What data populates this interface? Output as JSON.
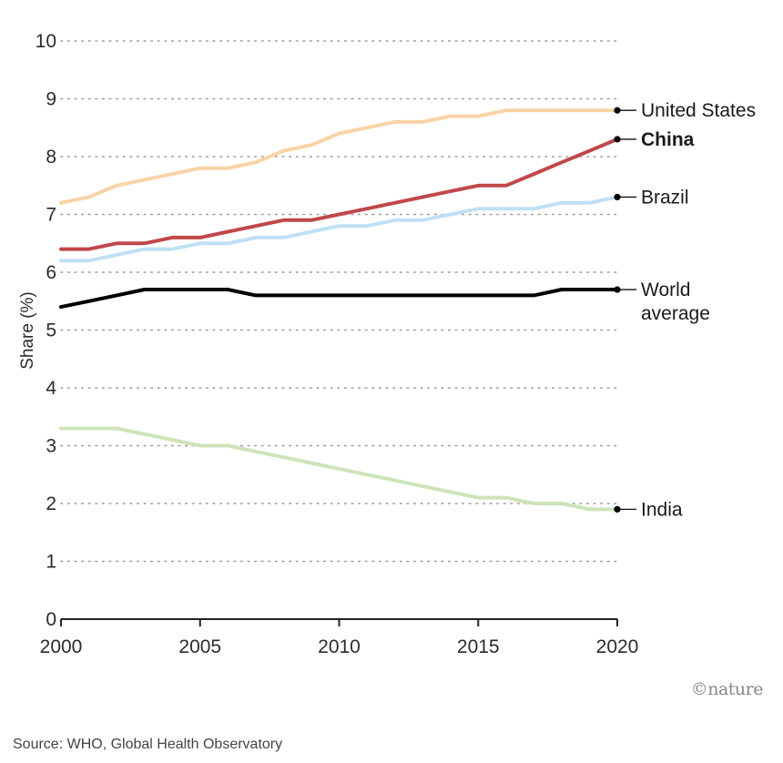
{
  "chart_data": {
    "type": "line",
    "title": "",
    "xlabel": "",
    "ylabel": "Share (%)",
    "xlim": [
      2000,
      2020
    ],
    "ylim": [
      0,
      10
    ],
    "x_ticks": [
      2000,
      2005,
      2010,
      2015,
      2020
    ],
    "y_ticks": [
      0,
      1,
      2,
      3,
      4,
      5,
      6,
      7,
      8,
      9,
      10
    ],
    "grid": true,
    "x": [
      2000,
      2001,
      2002,
      2003,
      2004,
      2005,
      2006,
      2007,
      2008,
      2009,
      2010,
      2011,
      2012,
      2013,
      2014,
      2015,
      2016,
      2017,
      2018,
      2019,
      2020
    ],
    "series": [
      {
        "name": "United States",
        "label_lines": [
          "United States"
        ],
        "bold": false,
        "color": "#f9d3a6",
        "values": [
          7.2,
          7.3,
          7.5,
          7.6,
          7.7,
          7.8,
          7.8,
          7.9,
          8.1,
          8.2,
          8.4,
          8.5,
          8.6,
          8.6,
          8.7,
          8.7,
          8.8,
          8.8,
          8.8,
          8.8,
          8.8
        ]
      },
      {
        "name": "China",
        "label_lines": [
          "China"
        ],
        "bold": true,
        "color": "#c0474a",
        "values": [
          6.4,
          6.4,
          6.5,
          6.5,
          6.6,
          6.6,
          6.7,
          6.8,
          6.9,
          6.9,
          7.0,
          7.1,
          7.2,
          7.3,
          7.4,
          7.5,
          7.5,
          7.7,
          7.9,
          8.1,
          8.3
        ]
      },
      {
        "name": "Brazil",
        "label_lines": [
          "Brazil"
        ],
        "bold": false,
        "color": "#bfe0f4",
        "values": [
          6.2,
          6.2,
          6.3,
          6.4,
          6.4,
          6.5,
          6.5,
          6.6,
          6.6,
          6.7,
          6.8,
          6.8,
          6.9,
          6.9,
          7.0,
          7.1,
          7.1,
          7.1,
          7.2,
          7.2,
          7.3
        ]
      },
      {
        "name": "World average",
        "label_lines": [
          "World",
          "average"
        ],
        "bold": false,
        "color": "#000000",
        "values": [
          5.4,
          5.5,
          5.6,
          5.7,
          5.7,
          5.7,
          5.7,
          5.6,
          5.6,
          5.6,
          5.6,
          5.6,
          5.6,
          5.6,
          5.6,
          5.6,
          5.6,
          5.6,
          5.7,
          5.7,
          5.7
        ]
      },
      {
        "name": "India",
        "label_lines": [
          "India"
        ],
        "bold": false,
        "color": "#cde4b8",
        "values": [
          3.3,
          3.3,
          3.3,
          3.2,
          3.1,
          3.0,
          3.0,
          2.9,
          2.8,
          2.7,
          2.6,
          2.5,
          2.4,
          2.3,
          2.2,
          2.1,
          2.1,
          2.0,
          2.0,
          1.9,
          1.9
        ]
      }
    ]
  },
  "source": "Source: WHO, Global Health Observatory",
  "credit": "©nature"
}
